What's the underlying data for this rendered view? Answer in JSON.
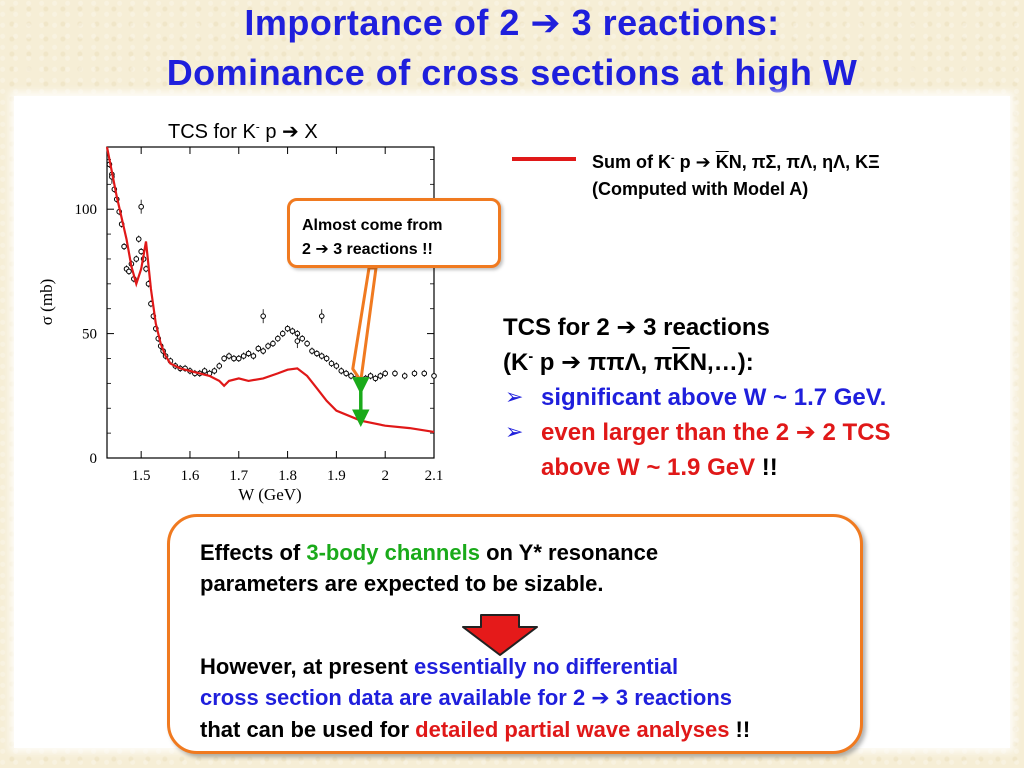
{
  "slide": {
    "title_line1": "Importance of 2 ",
    "title_arrow": "➔",
    "title_line1_end": " 3 reactions:",
    "title_line2": "Dominance of cross sections at high W"
  },
  "chart_title": {
    "pre": "TCS for K",
    "sup": "-",
    "mid": " p ",
    "arrow": "➔",
    "end": " X"
  },
  "legend": {
    "line1_pre": "Sum of K",
    "line1_sup": "-",
    "line1_mid": " p ",
    "arrow": "➔",
    "line1_kbar": "K",
    "line1_end": "N, πΣ, πΛ, ηΛ, KΞ",
    "line2": "(Computed with Model A)"
  },
  "callout": {
    "line1": "Almost come from",
    "line2_pre": "2 ",
    "arrow": "➔",
    "line2_end": " 3 reactions !!"
  },
  "tcs_text": {
    "line1_pre": "TCS for 2 ",
    "arrow": "➔",
    "line1_end": " 3 reactions",
    "line2_open": "(K",
    "line2_sup": "-",
    "line2_mid": " p ",
    "line2_rest": " ππΛ, π",
    "line2_kbar": "K",
    "line2_end": "N,…):",
    "bullet_mark": "➢",
    "bullet1": "significant above W ~ 1.7 GeV.",
    "bullet2_pre": "even larger than the 2 ",
    "bullet2_end": " 2 TCS",
    "bullet2_line2": "above W ~ 1.9 GeV",
    "bullet2_tail": " !!"
  },
  "effects": {
    "line1_pre": "Effects of ",
    "line1_green": "3-body channels",
    "line1_post": " on Y* resonance",
    "line2": "parameters are expected to be sizable.",
    "line3_pre": "However, at present ",
    "line3_blue": "essentially no differential",
    "line4_blue_pre": "cross section data are available for 2 ",
    "arrow": "➔",
    "line4_blue_end": " 3 reactions",
    "line5_pre": "that can be used for ",
    "line5_red": "detailed partial wave analyses",
    "line5_post": " !!"
  },
  "colors": {
    "title": "#1f1fdc",
    "model_line": "#e01818",
    "callout_border": "#f07a20",
    "green_arrow": "#1aaa1a",
    "data_points": "#000000"
  },
  "chart_data": {
    "type": "scatter",
    "title": "TCS for K- p ➔ X",
    "xlabel": "W (GeV)",
    "ylabel": "σ (mb)",
    "xlim": [
      1.43,
      2.1
    ],
    "ylim": [
      0,
      125
    ],
    "xticks": [
      "1.5",
      "1.6",
      "1.7",
      "1.8",
      "1.9",
      "2",
      "2.1"
    ],
    "xtick_values": [
      1.5,
      1.6,
      1.7,
      1.8,
      1.9,
      2.0,
      2.1
    ],
    "yticks": [
      "0",
      "50",
      "100"
    ],
    "ytick_values": [
      0,
      50,
      100
    ],
    "series": [
      {
        "name": "Sum of K- p ➔ K̄N, πΣ, πΛ, ηΛ, KΞ (Computed with Model A)",
        "kind": "line",
        "x": [
          1.43,
          1.45,
          1.47,
          1.48,
          1.49,
          1.5,
          1.51,
          1.52,
          1.53,
          1.54,
          1.55,
          1.56,
          1.58,
          1.6,
          1.62,
          1.64,
          1.66,
          1.67,
          1.68,
          1.7,
          1.72,
          1.75,
          1.78,
          1.8,
          1.82,
          1.84,
          1.86,
          1.88,
          1.9,
          1.95,
          2.0,
          2.05,
          2.1
        ],
        "y": [
          125,
          105,
          88,
          77,
          70,
          76,
          87,
          68,
          54,
          46,
          41,
          38,
          36,
          35,
          34,
          33,
          31,
          29,
          31,
          32,
          31,
          32,
          34,
          35.5,
          36,
          33,
          28,
          23,
          19,
          15,
          13,
          12,
          10.5
        ]
      },
      {
        "name": "Data",
        "kind": "scatter",
        "x": [
          1.435,
          1.44,
          1.445,
          1.45,
          1.455,
          1.46,
          1.465,
          1.47,
          1.475,
          1.48,
          1.485,
          1.49,
          1.495,
          1.5,
          1.505,
          1.51,
          1.515,
          1.52,
          1.525,
          1.53,
          1.535,
          1.54,
          1.545,
          1.55,
          1.56,
          1.57,
          1.58,
          1.59,
          1.6,
          1.61,
          1.62,
          1.63,
          1.64,
          1.65,
          1.66,
          1.67,
          1.68,
          1.69,
          1.7,
          1.71,
          1.72,
          1.73,
          1.74,
          1.75,
          1.76,
          1.77,
          1.78,
          1.79,
          1.8,
          1.81,
          1.82,
          1.83,
          1.84,
          1.85,
          1.86,
          1.87,
          1.88,
          1.89,
          1.9,
          1.91,
          1.92,
          1.93,
          1.94,
          1.95,
          1.96,
          1.97,
          1.98,
          1.99,
          2.0,
          2.02,
          2.04,
          2.06,
          2.08,
          2.1
        ],
        "y": [
          118,
          114,
          108,
          104,
          99,
          94,
          85,
          76,
          75,
          78,
          72,
          80,
          88,
          83,
          80,
          76,
          70,
          62,
          57,
          52,
          48,
          45,
          43,
          41,
          39,
          37,
          36,
          36,
          35,
          34,
          34,
          35,
          34,
          35,
          37,
          40,
          41,
          40,
          40,
          41,
          42,
          41,
          44,
          43,
          45,
          46,
          48,
          50,
          52,
          51,
          50,
          48,
          46,
          43,
          42,
          41,
          40,
          38,
          37,
          35,
          34,
          33,
          32,
          31,
          32,
          33,
          32,
          33,
          34,
          34,
          33,
          34,
          34,
          33
        ],
        "outliers_x": [
          1.44,
          1.5,
          1.75,
          1.82,
          1.87
        ],
        "outliers_y": [
          113,
          101,
          57,
          47,
          57
        ]
      }
    ],
    "annotation": {
      "label": "Almost come from 2 ➔ 3 reactions !!",
      "x": 1.95,
      "y": 31
    },
    "gap_arrow": {
      "x": 1.95,
      "y_from": 16,
      "y_to": 29
    }
  }
}
